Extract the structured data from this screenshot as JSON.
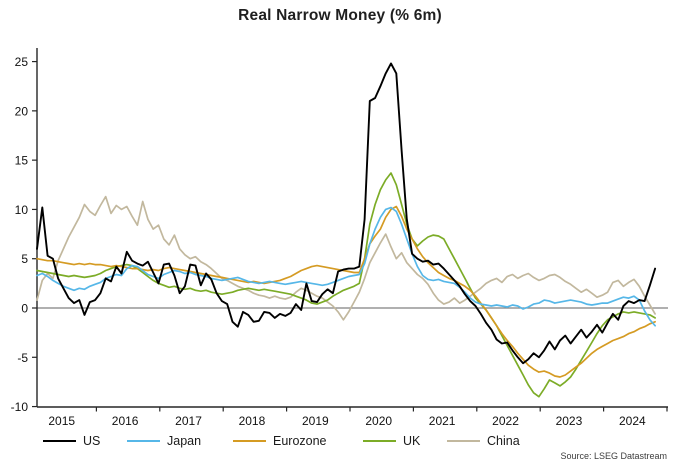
{
  "chart_data": {
    "type": "line",
    "title": "Real Narrow Money (% 6m)",
    "source": "Source: LSEG Datastream",
    "xlabel": "",
    "ylabel": "",
    "x_unit": "monthly",
    "x_range": [
      "2015-01",
      "2024-10"
    ],
    "x_tick_labels": [
      "2015",
      "2016",
      "2017",
      "2018",
      "2019",
      "2020",
      "2021",
      "2022",
      "2023",
      "2024"
    ],
    "y_ticks": [
      25,
      20,
      15,
      10,
      5,
      0,
      -5,
      -10
    ],
    "ylim": [
      -10,
      26.5
    ],
    "grid": false,
    "zero_line": true,
    "legend_position": "bottom",
    "colors": {
      "axis": "#262626",
      "zero_line": "#808080"
    },
    "series": [
      {
        "name": "US",
        "color": "#000000",
        "values": [
          6.0,
          10.2,
          5.3,
          5.0,
          3.0,
          2.0,
          1.0,
          0.5,
          0.8,
          -0.7,
          0.6,
          0.8,
          1.5,
          3.0,
          2.7,
          4.2,
          3.5,
          5.7,
          4.8,
          4.5,
          4.3,
          4.7,
          3.6,
          2.5,
          4.4,
          4.5,
          3.3,
          1.5,
          2.2,
          4.4,
          4.3,
          2.3,
          3.5,
          2.9,
          1.5,
          0.7,
          0.4,
          -1.4,
          -1.9,
          -0.4,
          -0.7,
          -1.4,
          -1.3,
          -0.4,
          -0.5,
          -1.0,
          -0.6,
          -0.8,
          -0.5,
          0.4,
          -0.2,
          2.5,
          0.7,
          0.6,
          1.4,
          1.9,
          1.5,
          3.7,
          3.9,
          4.0,
          4.0,
          4.2,
          9.0,
          21.0,
          21.3,
          22.5,
          23.8,
          24.8,
          23.8,
          16.0,
          9.0,
          5.5,
          5.0,
          4.7,
          4.8,
          4.4,
          4.5,
          4.0,
          3.4,
          2.8,
          2.2,
          1.4,
          0.7,
          0.2,
          -0.6,
          -1.5,
          -2.2,
          -3.2,
          -3.6,
          -3.5,
          -4.3,
          -5.0,
          -5.6,
          -5.2,
          -4.6,
          -5.0,
          -4.3,
          -3.4,
          -4.2,
          -3.3,
          -2.8,
          -3.6,
          -2.9,
          -2.2,
          -3.0,
          -2.4,
          -1.7,
          -2.5,
          -1.5,
          -0.6,
          -1.2,
          0.2,
          0.7,
          0.5,
          0.8,
          0.7,
          2.3,
          4.0
        ]
      },
      {
        "name": "Japan",
        "color": "#56B7E8",
        "values": [
          3.3,
          3.5,
          3.2,
          2.8,
          2.5,
          2.2,
          2.0,
          1.8,
          2.0,
          1.9,
          2.2,
          2.4,
          2.6,
          3.0,
          3.2,
          3.4,
          3.3,
          4.0,
          4.3,
          4.2,
          3.8,
          3.4,
          3.2,
          3.0,
          3.4,
          3.6,
          3.8,
          3.7,
          3.5,
          3.6,
          3.4,
          3.3,
          3.2,
          3.0,
          2.9,
          2.8,
          2.9,
          3.0,
          3.1,
          2.9,
          2.7,
          2.6,
          2.5,
          2.6,
          2.7,
          2.6,
          2.5,
          2.4,
          2.5,
          2.6,
          2.7,
          2.6,
          2.5,
          2.4,
          2.3,
          2.4,
          2.6,
          2.8,
          3.0,
          3.2,
          3.3,
          3.4,
          4.5,
          6.5,
          8.0,
          9.2,
          10.0,
          10.2,
          9.8,
          8.5,
          7.0,
          5.5,
          4.2,
          3.3,
          2.9,
          2.8,
          2.9,
          2.7,
          2.6,
          2.5,
          2.1,
          1.6,
          1.0,
          0.6,
          0.4,
          0.3,
          0.2,
          0.3,
          0.2,
          0.1,
          0.3,
          0.2,
          -0.1,
          0.1,
          0.4,
          0.5,
          0.8,
          0.7,
          0.5,
          0.6,
          0.7,
          0.8,
          0.7,
          0.6,
          0.4,
          0.3,
          0.4,
          0.5,
          0.5,
          0.7,
          0.9,
          1.1,
          1.0,
          1.2,
          0.8,
          -0.3,
          -1.2,
          -1.8
        ]
      },
      {
        "name": "Eurozone",
        "color": "#D59B23",
        "values": [
          5.0,
          4.9,
          4.8,
          4.8,
          4.7,
          4.6,
          4.5,
          4.4,
          4.5,
          4.4,
          4.5,
          4.4,
          4.4,
          4.3,
          4.2,
          4.3,
          4.2,
          4.1,
          4.0,
          4.0,
          3.9,
          3.8,
          3.9,
          3.8,
          4.0,
          4.1,
          4.0,
          3.9,
          3.8,
          3.7,
          3.6,
          3.5,
          3.4,
          3.3,
          3.2,
          3.1,
          3.0,
          2.9,
          2.8,
          2.7,
          2.6,
          2.7,
          2.6,
          2.5,
          2.6,
          2.7,
          2.8,
          3.0,
          3.2,
          3.5,
          3.8,
          4.0,
          4.2,
          4.3,
          4.2,
          4.1,
          4.0,
          3.9,
          3.8,
          3.7,
          3.6,
          3.6,
          5.0,
          6.5,
          7.3,
          8.0,
          9.2,
          10.0,
          10.3,
          9.3,
          8.0,
          7.0,
          6.0,
          5.2,
          4.6,
          4.1,
          3.6,
          3.3,
          3.0,
          2.8,
          2.5,
          2.2,
          1.8,
          1.2,
          0.5,
          -0.2,
          -1.0,
          -1.8,
          -2.6,
          -3.3,
          -3.9,
          -4.6,
          -5.2,
          -5.8,
          -6.2,
          -6.5,
          -6.4,
          -6.6,
          -6.9,
          -7.0,
          -6.8,
          -6.4,
          -6.0,
          -5.6,
          -5.1,
          -4.6,
          -4.2,
          -3.9,
          -3.6,
          -3.3,
          -3.1,
          -2.9,
          -2.6,
          -2.4,
          -2.1,
          -1.9,
          -1.6,
          -1.4
        ]
      },
      {
        "name": "UK",
        "color": "#7CAC27",
        "values": [
          3.8,
          3.7,
          3.6,
          3.5,
          3.4,
          3.3,
          3.2,
          3.3,
          3.2,
          3.1,
          3.2,
          3.3,
          3.5,
          3.8,
          4.0,
          4.2,
          4.3,
          4.4,
          4.3,
          4.0,
          3.6,
          3.2,
          2.8,
          2.5,
          2.3,
          2.1,
          2.2,
          2.0,
          1.9,
          2.0,
          1.8,
          1.7,
          1.8,
          1.6,
          1.5,
          1.4,
          1.5,
          1.6,
          1.8,
          1.9,
          2.0,
          1.9,
          1.8,
          1.9,
          1.8,
          1.7,
          1.6,
          1.5,
          1.4,
          1.2,
          1.0,
          0.8,
          0.5,
          0.4,
          0.6,
          0.8,
          1.2,
          1.5,
          1.8,
          2.0,
          2.2,
          2.5,
          5.0,
          8.5,
          10.5,
          12.0,
          13.0,
          13.7,
          12.5,
          10.5,
          8.5,
          7.0,
          6.3,
          6.8,
          7.2,
          7.4,
          7.3,
          7.0,
          6.0,
          5.0,
          4.0,
          3.0,
          2.0,
          1.0,
          0.4,
          -0.2,
          -1.0,
          -1.8,
          -2.8,
          -3.8,
          -4.8,
          -5.8,
          -6.8,
          -7.8,
          -8.6,
          -9.0,
          -8.2,
          -7.3,
          -7.6,
          -7.9,
          -7.5,
          -7.0,
          -6.2,
          -5.3,
          -4.4,
          -3.5,
          -2.6,
          -1.8,
          -1.2,
          -0.9,
          -0.6,
          -0.4,
          -0.5,
          -0.4,
          -0.5,
          -0.6,
          -0.7,
          -1.0
        ]
      },
      {
        "name": "China",
        "color": "#C2B89E",
        "values": [
          0.8,
          2.8,
          3.5,
          3.0,
          4.8,
          6.0,
          7.2,
          8.2,
          9.2,
          10.5,
          9.8,
          9.4,
          10.4,
          11.3,
          9.6,
          10.4,
          10.0,
          10.3,
          9.3,
          8.4,
          10.8,
          9.0,
          8.0,
          8.4,
          7.0,
          6.4,
          7.4,
          6.0,
          5.4,
          5.0,
          5.2,
          4.7,
          4.4,
          4.0,
          3.5,
          3.0,
          2.8,
          2.5,
          2.2,
          2.0,
          1.8,
          1.5,
          1.3,
          1.2,
          1.0,
          1.2,
          1.0,
          0.9,
          1.1,
          1.6,
          2.0,
          1.8,
          1.5,
          1.2,
          1.0,
          0.6,
          0.2,
          -0.4,
          -1.2,
          -0.4,
          0.6,
          1.6,
          3.0,
          4.6,
          5.6,
          6.6,
          7.5,
          6.2,
          5.0,
          5.6,
          4.6,
          4.0,
          3.4,
          3.0,
          2.4,
          1.5,
          0.8,
          0.4,
          0.6,
          1.0,
          0.5,
          0.8,
          1.2,
          1.6,
          2.0,
          2.5,
          2.8,
          3.0,
          2.6,
          3.2,
          3.4,
          3.0,
          3.3,
          3.5,
          3.1,
          2.8,
          3.0,
          3.3,
          3.4,
          3.1,
          2.7,
          2.4,
          2.0,
          1.6,
          1.9,
          1.5,
          1.1,
          1.3,
          1.6,
          2.6,
          2.8,
          2.2,
          2.6,
          2.9,
          2.2,
          1.2,
          0.3,
          -0.6
        ]
      }
    ]
  }
}
